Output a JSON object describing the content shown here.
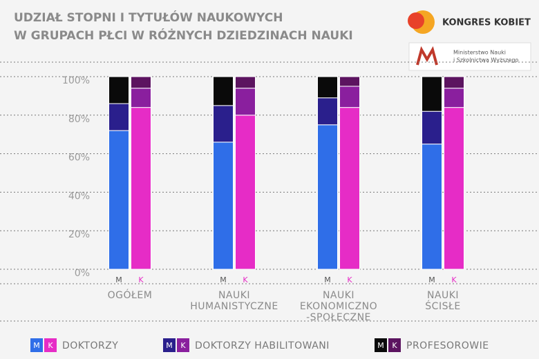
{
  "chart_data": {
    "type": "stacked-bar",
    "title": [
      "UDZIAŁ STOPNI I TYTUŁÓW NAUKOWYCH",
      "W GRUPACH PŁCI W RÓŻNYCH DZIEDZINACH NAUKI"
    ],
    "logos": [
      "KONGRES KOBIET",
      "Ministerstwo Nauki",
      "i Szkolnictwa Wyższego"
    ],
    "categories": [
      [
        "OGÓŁEM"
      ],
      [
        "NAUKI",
        "HUMANISTYCZNE"
      ],
      [
        "NAUKI",
        "EKONOMICZNO",
        "-SPOŁECZNE"
      ],
      [
        "NAUKI",
        "ŚCISŁE"
      ]
    ],
    "bars": [
      "M",
      "K"
    ],
    "series": [
      {
        "name": "DOKTORZY",
        "colors": [
          "#2f6ee8",
          "#e62cc6"
        ],
        "values": {
          "M": [
            72,
            66,
            75,
            65
          ],
          "K": [
            84,
            80,
            84,
            84
          ]
        }
      },
      {
        "name": "DOKTORZY HABILITOWANI",
        "colors": [
          "#2a1f8c",
          "#8a1f9e"
        ],
        "values": {
          "M": [
            14,
            19,
            14,
            17
          ],
          "K": [
            10,
            14,
            11,
            10
          ]
        }
      },
      {
        "name": "PROFESOROWIE",
        "colors": [
          "#0a0a0a",
          "#5c1460"
        ],
        "values": {
          "M": [
            14,
            15,
            11,
            18
          ],
          "K": [
            6,
            6,
            5,
            6
          ]
        }
      }
    ],
    "ylim": [
      0,
      100
    ],
    "yticks": [
      {
        "value": 0,
        "label": "0%"
      },
      {
        "value": 20,
        "label": "20%"
      },
      {
        "value": 40,
        "label": "40%"
      },
      {
        "value": 60,
        "label": "60%"
      },
      {
        "value": 80,
        "label": "80%"
      },
      {
        "value": 100,
        "label": "100%"
      }
    ],
    "grid": true
  }
}
